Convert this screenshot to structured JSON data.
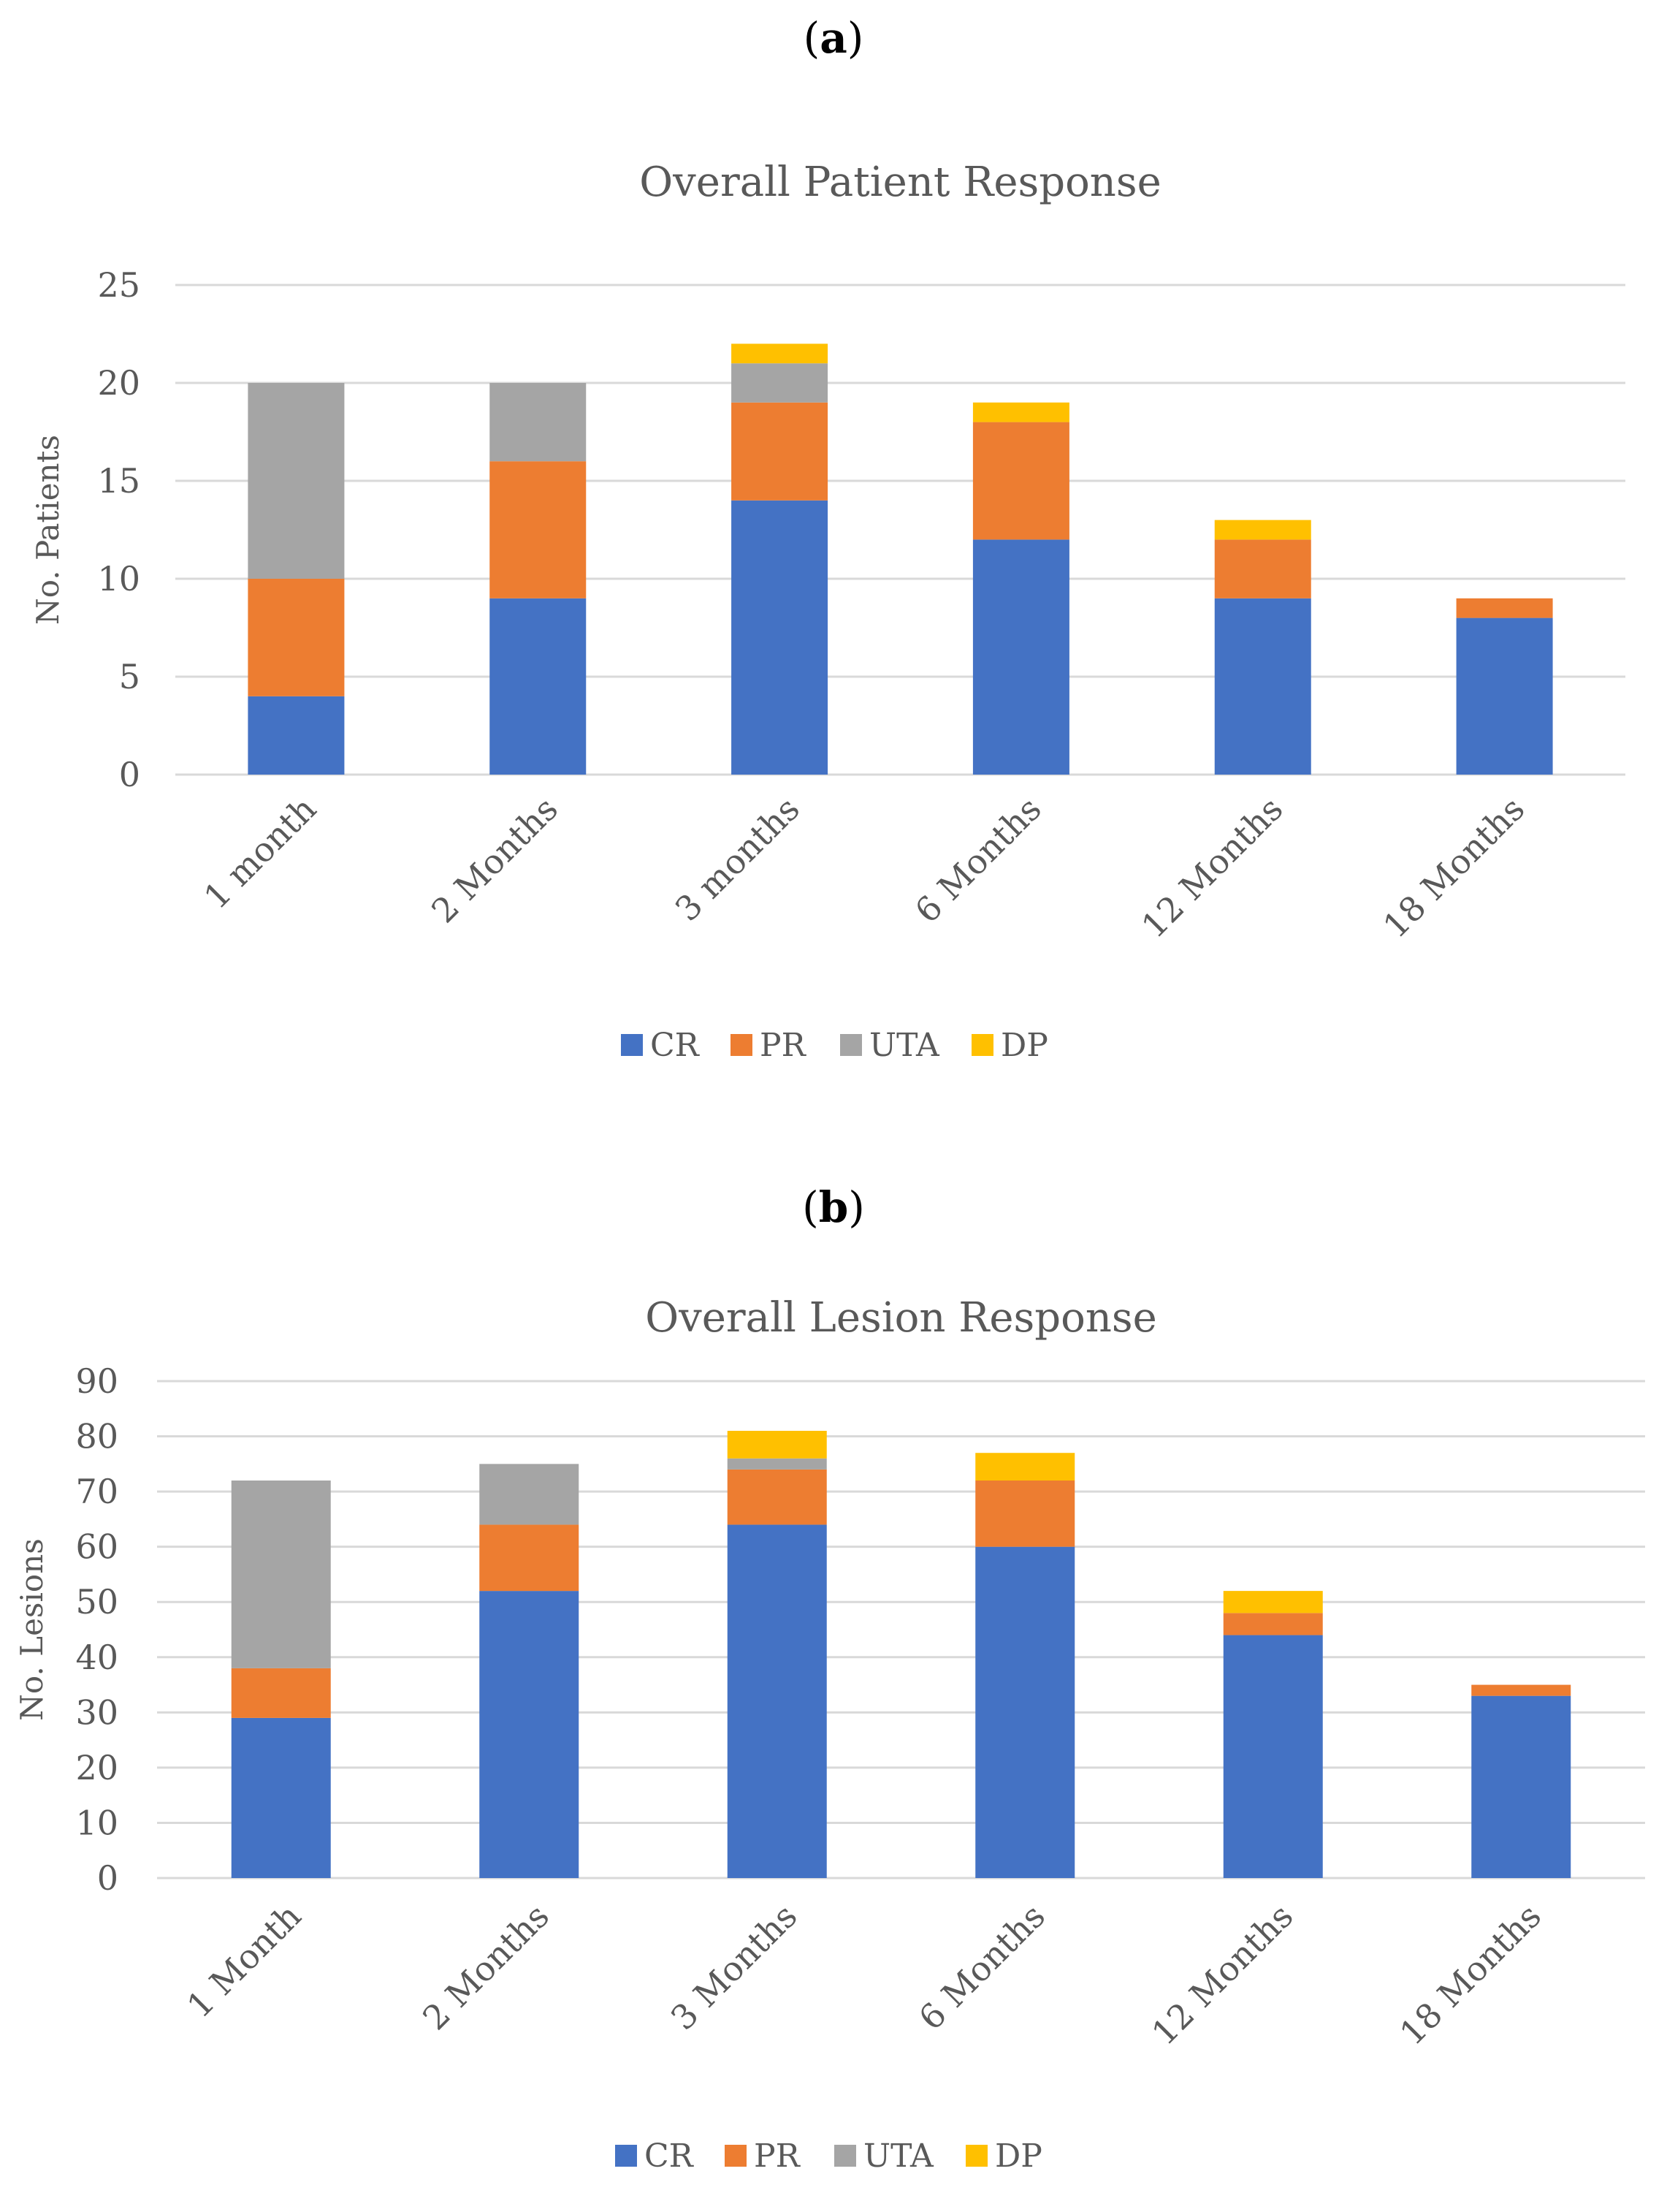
{
  "panels": [
    {
      "label_open": "(",
      "label_letter": "a",
      "label_close": ")"
    },
    {
      "label_open": "(",
      "label_letter": "b",
      "label_close": ")"
    }
  ],
  "colors": {
    "CR": "#4472C4",
    "PR": "#ED7D31",
    "UTA": "#A5A5A5",
    "DP": "#FFC000",
    "grid": "#D9D9D9",
    "text": "#595959"
  },
  "chart_data": [
    {
      "type": "bar",
      "stacked": true,
      "title": "Overall Patient Response",
      "xlabel": "",
      "ylabel": "No. Patients",
      "ylim": [
        0,
        25
      ],
      "yticks": [
        0,
        5,
        10,
        15,
        20,
        25
      ],
      "categories": [
        "1 month",
        "2 Months",
        "3 months",
        "6 Months",
        "12 Months",
        "18 Months"
      ],
      "series": [
        {
          "name": "CR",
          "values": [
            4,
            9,
            14,
            12,
            9,
            8
          ]
        },
        {
          "name": "PR",
          "values": [
            6,
            7,
            5,
            6,
            3,
            1
          ]
        },
        {
          "name": "UTA",
          "values": [
            10,
            4,
            2,
            0,
            0,
            0
          ]
        },
        {
          "name": "DP",
          "values": [
            0,
            0,
            1,
            1,
            1,
            0
          ]
        }
      ],
      "legend": "bottom"
    },
    {
      "type": "bar",
      "stacked": true,
      "title": "Overall Lesion Response",
      "xlabel": "",
      "ylabel": "No. Lesions",
      "ylim": [
        0,
        90
      ],
      "yticks": [
        0,
        10,
        20,
        30,
        40,
        50,
        60,
        70,
        80,
        90
      ],
      "categories": [
        "1 Month",
        "2 Months",
        "3 Months",
        "6 Months",
        "12 Months",
        "18 Months"
      ],
      "series": [
        {
          "name": "CR",
          "values": [
            29,
            52,
            64,
            60,
            44,
            33
          ]
        },
        {
          "name": "PR",
          "values": [
            9,
            12,
            10,
            12,
            4,
            2
          ]
        },
        {
          "name": "UTA",
          "values": [
            34,
            11,
            2,
            0,
            0,
            0
          ]
        },
        {
          "name": "DP",
          "values": [
            0,
            0,
            5,
            5,
            4,
            0
          ]
        }
      ],
      "legend": "bottom"
    }
  ]
}
